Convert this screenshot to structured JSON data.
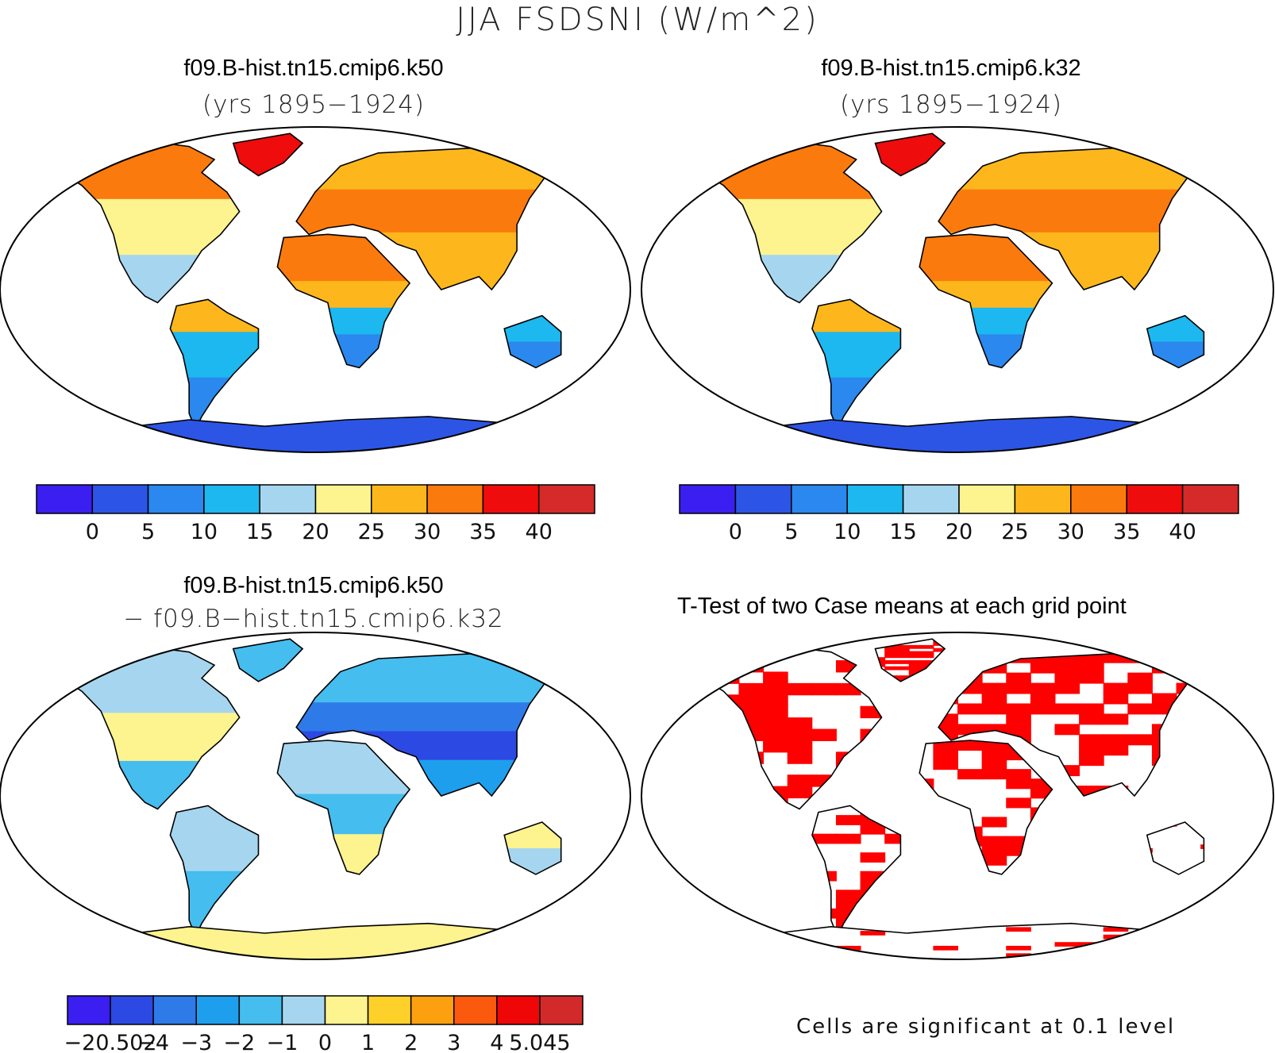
{
  "figure": {
    "title": "JJA FSDSNI (W/m^2)"
  },
  "panels": [
    {
      "id": "k50",
      "title": "f09.B-hist.tn15.cmip6.k50",
      "subtitle": "(yrs 1895−1924)",
      "kind": "field"
    },
    {
      "id": "k32",
      "title": "f09.B-hist.tn15.cmip6.k32",
      "subtitle": "(yrs 1895−1924)",
      "kind": "field"
    },
    {
      "id": "diff",
      "title": "f09.B-hist.tn15.cmip6.k50",
      "subtitle": "− f09.B−hist.tn15.cmip6.k32",
      "kind": "difference"
    },
    {
      "id": "ttest",
      "title": "T-Test of two Case means at each grid point",
      "kind": "significance",
      "footnote": "Cells are significant at 0.1 level",
      "significant_color": "#ff0000"
    }
  ],
  "colorbars": {
    "field": {
      "colors": [
        "#3a1ff0",
        "#2c55e6",
        "#2a88ee",
        "#1cb8ef",
        "#a6d6ef",
        "#fdf38f",
        "#fdb71c",
        "#fb7a0d",
        "#ef0c0c",
        "#d42a2a"
      ],
      "labels": [
        "0",
        "5",
        "10",
        "15",
        "20",
        "25",
        "30",
        "35",
        "40"
      ]
    },
    "diff": {
      "colors": [
        "#3a1ff0",
        "#2c49e4",
        "#2f7ae9",
        "#1e9fee",
        "#45bdef",
        "#a6d6ef",
        "#fdf38f",
        "#fdd12a",
        "#fda010",
        "#fb5a0e",
        "#ef0606",
        "#d22a2a"
      ],
      "labels": [
        "−20.502",
        "−4",
        "−3",
        "−2",
        "−1",
        "0",
        "1",
        "2",
        "3",
        "4",
        "5.045"
      ]
    }
  },
  "map_colors": {
    "ocean": "#ffffff",
    "frame": "#000000",
    "coast": "#000000"
  }
}
